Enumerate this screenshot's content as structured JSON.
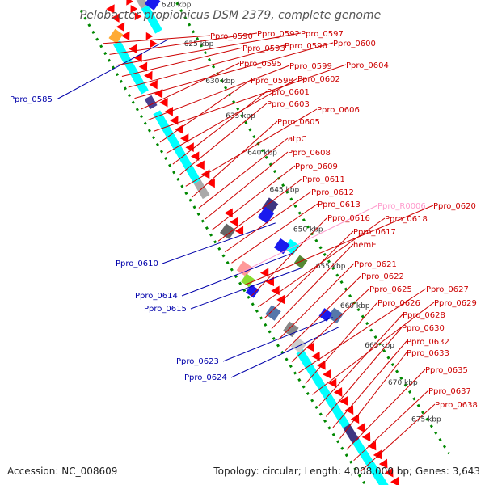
{
  "title": "Pelobacter propionicus DSM 2379, complete genome",
  "footer": {
    "accession": "Accession: NC_008609",
    "summary": "Topology: circular; Length: 4,008,000 bp; Genes: 3,643"
  },
  "colors": {
    "forward_label": "#cc0000",
    "reverse_label": "#0000aa",
    "rna_label": "#ff99cc",
    "cds": "#ff0000",
    "backbone": "#999999",
    "tick_dots": "#008800",
    "cog_cyan": "#00ffff"
  },
  "ticks": [
    {
      "label": "620 kbp"
    },
    {
      "label": "625 kbp"
    },
    {
      "label": "630 kbp"
    },
    {
      "label": "635 kbp"
    },
    {
      "label": "640 kbp"
    },
    {
      "label": "645 kbp"
    },
    {
      "label": "650 kbp"
    },
    {
      "label": "655 kbp"
    },
    {
      "label": "660 kbp"
    },
    {
      "label": "665 kbp"
    },
    {
      "label": "670 kbp"
    },
    {
      "label": "675 kbp"
    }
  ],
  "reverse_labels": [
    {
      "text": "Ppro_0585"
    },
    {
      "text": "Ppro_0610"
    },
    {
      "text": "Ppro_0614"
    },
    {
      "text": "Ppro_0615"
    },
    {
      "text": "Ppro_0623"
    },
    {
      "text": "Ppro_0624"
    }
  ],
  "forward_labels": [
    {
      "text": "Ppro_0590"
    },
    {
      "text": "Ppro_0592"
    },
    {
      "text": "Ppro_0597"
    },
    {
      "text": "Ppro_0593"
    },
    {
      "text": "Ppro_0596"
    },
    {
      "text": "Ppro_0600"
    },
    {
      "text": "Ppro_0595"
    },
    {
      "text": "Ppro_0599"
    },
    {
      "text": "Ppro_0604"
    },
    {
      "text": "Ppro_0598"
    },
    {
      "text": "Ppro_0602"
    },
    {
      "text": "Ppro_0601"
    },
    {
      "text": "Ppro_0603"
    },
    {
      "text": "Ppro_0606"
    },
    {
      "text": "Ppro_0605"
    },
    {
      "text": "atpC"
    },
    {
      "text": "Ppro_0608"
    },
    {
      "text": "Ppro_0609"
    },
    {
      "text": "Ppro_0611"
    },
    {
      "text": "Ppro_0612"
    },
    {
      "text": "Ppro_0613"
    },
    {
      "text": "Ppro_R0006"
    },
    {
      "text": "Ppro_0620"
    },
    {
      "text": "Ppro_0616"
    },
    {
      "text": "Ppro_0618"
    },
    {
      "text": "Ppro_0617"
    },
    {
      "text": "hemE"
    },
    {
      "text": "Ppro_0621"
    },
    {
      "text": "Ppro_0622"
    },
    {
      "text": "Ppro_0625"
    },
    {
      "text": "Ppro_0627"
    },
    {
      "text": "Ppro_0626"
    },
    {
      "text": "Ppro_0629"
    },
    {
      "text": "Ppro_0628"
    },
    {
      "text": "Ppro_0630"
    },
    {
      "text": "Ppro_0632"
    },
    {
      "text": "Ppro_0633"
    },
    {
      "text": "Ppro_0635"
    },
    {
      "text": "Ppro_0637"
    },
    {
      "text": "Ppro_0638"
    }
  ]
}
